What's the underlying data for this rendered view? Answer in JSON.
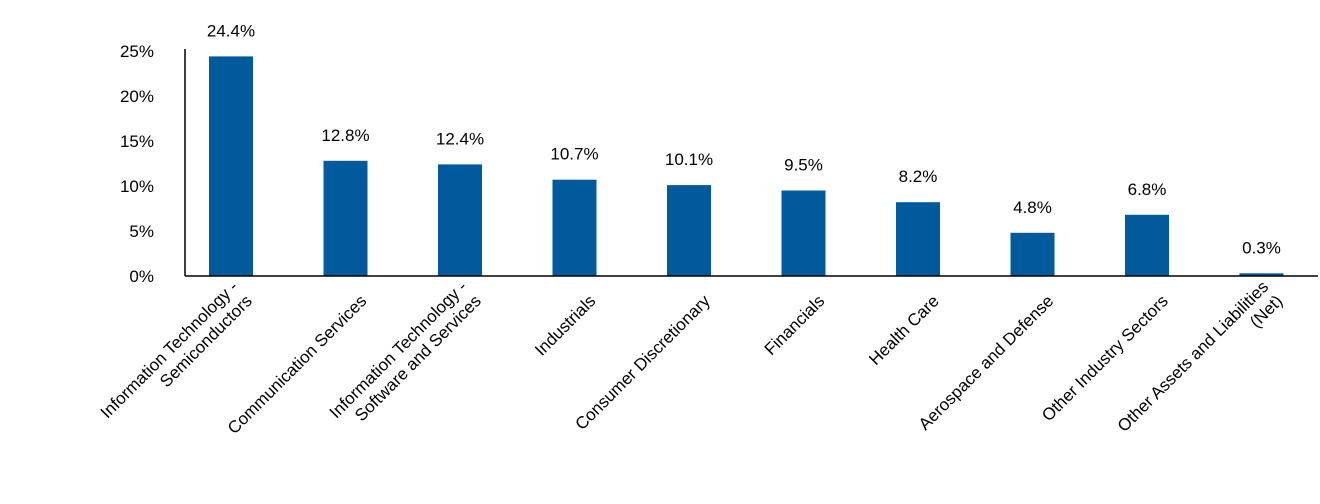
{
  "chart_data": {
    "type": "bar",
    "categories": [
      [
        "Information Technology -",
        "Semiconductors"
      ],
      [
        "Communication Services"
      ],
      [
        "Information Technology -",
        "Software and Services"
      ],
      [
        "Industrials"
      ],
      [
        "Consumer Discretionary"
      ],
      [
        "Financials"
      ],
      [
        "Health Care"
      ],
      [
        "Aerospace and Defense"
      ],
      [
        "Other Industry Sectors"
      ],
      [
        "Other Assets and Liabilities",
        "(Net)"
      ]
    ],
    "values": [
      24.4,
      12.8,
      12.4,
      10.7,
      10.1,
      9.5,
      8.2,
      4.8,
      6.8,
      0.3
    ],
    "data_labels": [
      "24.4%",
      "12.8%",
      "12.4%",
      "10.7%",
      "10.1%",
      "9.5%",
      "8.2%",
      "4.8%",
      "6.8%",
      "0.3%"
    ],
    "ylim": [
      0,
      25
    ],
    "yticks": [
      0,
      5,
      10,
      15,
      20,
      25
    ],
    "ytick_labels": [
      "0%",
      "5%",
      "10%",
      "15%",
      "20%",
      "25%"
    ],
    "bar_color": "#005a9c",
    "grid": false,
    "legend": "none"
  }
}
